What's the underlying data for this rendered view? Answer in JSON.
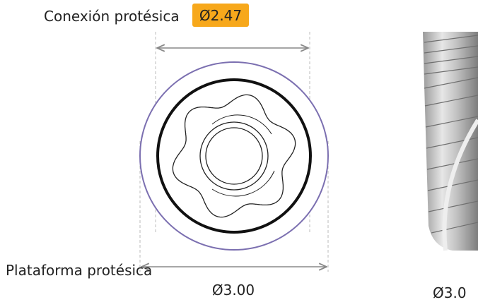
{
  "connection": {
    "label": "Conexión protésica",
    "diameter": "Ø2.47"
  },
  "platform": {
    "label": "Plataforma protésica",
    "diameter": "Ø3.00"
  },
  "implant": {
    "diameter": "Ø3.0"
  }
}
